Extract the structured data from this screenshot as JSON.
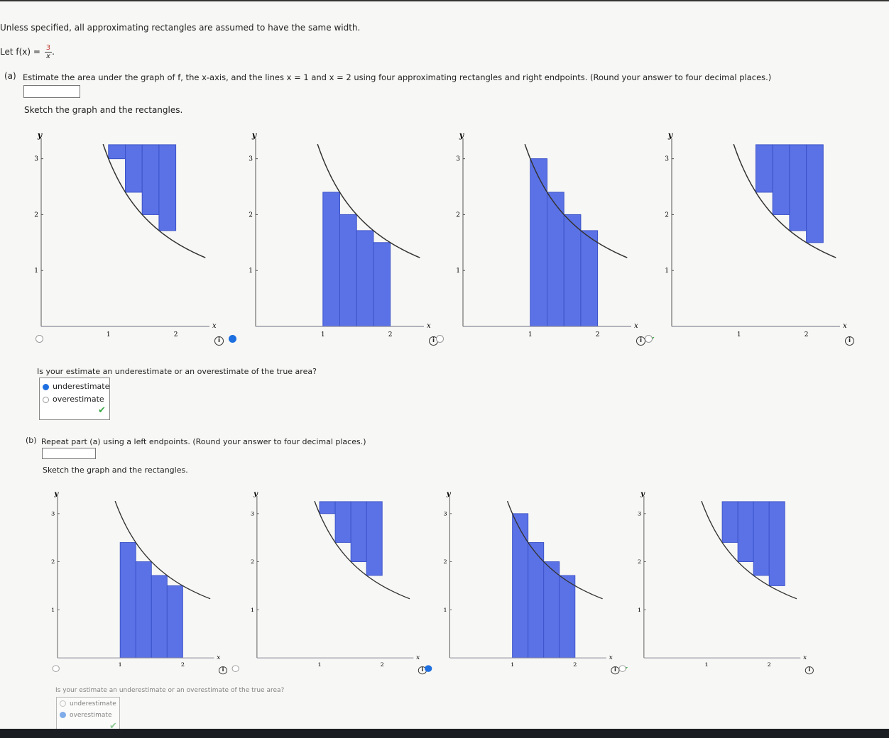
{
  "intro": "Unless specified, all approximating rectangles are assumed to have the same width.",
  "function": {
    "prefix": "Let f(x) = ",
    "numerator": "3",
    "denominator": "x",
    "suffix": "."
  },
  "part_a": {
    "label": "(a)",
    "prompt": "Estimate the area under the graph of f, the x-axis, and the lines x = 1 and x = 2 using four approximating rectangles and right endpoints. (Round your answer to four decimal places.)",
    "answer_value": "",
    "sketch_prompt": "Sketch the graph and the rectangles.",
    "selected_graph": 2,
    "graphs": [
      {
        "rects": [
          [
            1,
            1.25,
            3,
            3.25
          ],
          [
            1.25,
            1.5,
            2.4,
            3.25
          ],
          [
            1.5,
            1.75,
            2,
            3.25
          ],
          [
            1.75,
            2,
            1.714,
            3.25
          ]
        ]
      },
      {
        "rects": [
          [
            1,
            1.25,
            0,
            2.4
          ],
          [
            1.25,
            1.5,
            0,
            2
          ],
          [
            1.5,
            1.75,
            0,
            1.714
          ],
          [
            1.75,
            2,
            0,
            1.5
          ]
        ]
      },
      {
        "rects": [
          [
            1,
            1.25,
            0,
            3
          ],
          [
            1.25,
            1.5,
            0,
            2.4
          ],
          [
            1.5,
            1.75,
            0,
            2
          ],
          [
            1.75,
            2,
            0,
            1.714
          ]
        ]
      },
      {
        "rects": [
          [
            1.25,
            1.5,
            2.4,
            3.25
          ],
          [
            1.5,
            1.75,
            2,
            3.25
          ],
          [
            1.75,
            2,
            1.714,
            3.25
          ],
          [
            2,
            2.25,
            1.5,
            3.25
          ]
        ]
      }
    ],
    "question": "Is your estimate an underestimate or an overestimate of the true area?",
    "options": [
      "underestimate",
      "overestimate"
    ],
    "selected_option": "underestimate"
  },
  "part_b": {
    "label": "(b)",
    "prompt": "Repeat part (a) using a left endpoints. (Round your answer to four decimal places.)",
    "answer_value": "",
    "sketch_prompt": "Sketch the graph and the rectangles.",
    "selected_graph": 3,
    "graphs": [
      {
        "rects": [
          [
            1,
            1.25,
            0,
            2.4
          ],
          [
            1.25,
            1.5,
            0,
            2
          ],
          [
            1.5,
            1.75,
            0,
            1.714
          ],
          [
            1.75,
            2,
            0,
            1.5
          ]
        ]
      },
      {
        "rects": [
          [
            1,
            1.25,
            3,
            3.25
          ],
          [
            1.25,
            1.5,
            2.4,
            3.25
          ],
          [
            1.5,
            1.75,
            2,
            3.25
          ],
          [
            1.75,
            2,
            1.714,
            3.25
          ]
        ]
      },
      {
        "rects": [
          [
            1,
            1.25,
            0,
            3
          ],
          [
            1.25,
            1.5,
            0,
            2.4
          ],
          [
            1.5,
            1.75,
            0,
            2
          ],
          [
            1.75,
            2,
            0,
            1.714
          ]
        ]
      },
      {
        "rects": [
          [
            1.25,
            1.5,
            2.4,
            3.25
          ],
          [
            1.5,
            1.75,
            2,
            3.25
          ],
          [
            1.75,
            2,
            1.714,
            3.25
          ],
          [
            2,
            2.25,
            1.5,
            3.25
          ]
        ]
      }
    ],
    "question": "Is your estimate an underestimate or an overestimate of the true area?",
    "options": [
      "underestimate",
      "overestimate"
    ],
    "selected_option": "overestimate"
  },
  "graph_axes": {
    "x_label": "x",
    "y_label": "y",
    "x_ticks": [
      "1",
      "2"
    ],
    "y_ticks": [
      "1",
      "2",
      "3"
    ],
    "xlim": [
      0,
      2.5
    ],
    "ylim": [
      0,
      3.3
    ]
  },
  "colors": {
    "rect_fill": "#5b72e6",
    "rect_stroke": "#3b52c8",
    "curve": "#333333",
    "selected_radio": "#1e6fe0",
    "correct_check": "#3aa845"
  },
  "icons": {
    "info": "info-circle-icon",
    "correct": "checkmark-icon"
  }
}
